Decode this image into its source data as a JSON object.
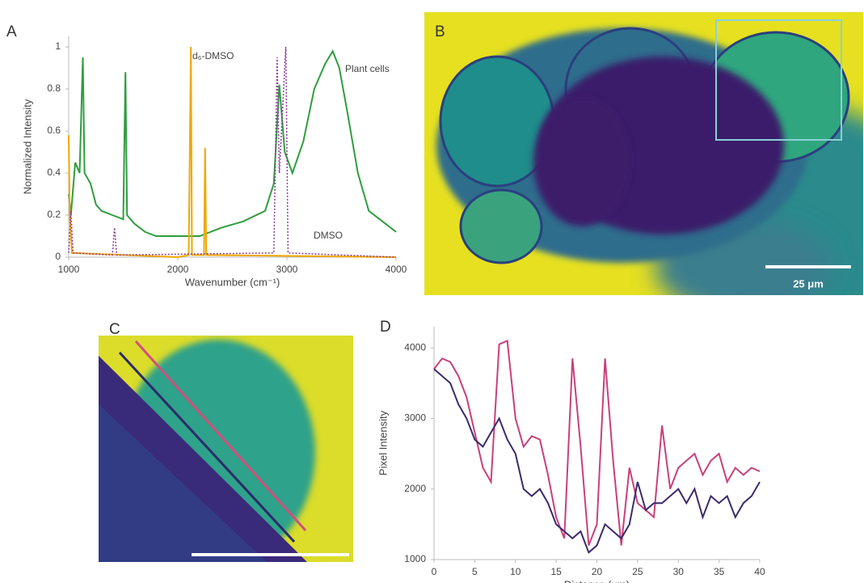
{
  "panel_labels": [
    "A",
    "B",
    "C",
    "D"
  ],
  "scale_bar": "25 μm",
  "chart_data": [
    {
      "type": "line",
      "xlabel": "Wavenumber (cm⁻¹)",
      "ylabel": "Normalized Intensity",
      "xlim": [
        1000,
        4000
      ],
      "ylim": [
        0,
        1.05
      ],
      "xticks": [
        1000,
        2000,
        3000,
        4000
      ],
      "yticks": [
        0,
        0.2,
        0.4,
        0.6,
        0.8,
        1
      ],
      "annotations": [
        "d₆-DMSO",
        "Plant cells",
        "DMSO"
      ],
      "series": [
        {
          "color": "#2e9e3e",
          "style": "solid",
          "x": [
            1000,
            1020,
            1060,
            1100,
            1130,
            1145,
            1200,
            1250,
            1300,
            1400,
            1500,
            1520,
            1535,
            1600,
            1700,
            1800,
            2000,
            2200,
            2400,
            2600,
            2800,
            2880,
            2930,
            2980,
            3050,
            3150,
            3250,
            3350,
            3420,
            3480,
            3550,
            3650,
            3750,
            3850,
            4000
          ],
          "values": [
            0.3,
            0.2,
            0.45,
            0.4,
            0.95,
            0.4,
            0.35,
            0.25,
            0.22,
            0.2,
            0.18,
            0.88,
            0.2,
            0.16,
            0.12,
            0.1,
            0.1,
            0.1,
            0.14,
            0.17,
            0.22,
            0.35,
            0.82,
            0.5,
            0.4,
            0.55,
            0.8,
            0.92,
            0.98,
            0.9,
            0.7,
            0.4,
            0.22,
            0.18,
            0.12
          ]
        },
        {
          "color": "#f0a800",
          "style": "solid",
          "x": [
            1000,
            1010,
            1030,
            2000,
            2100,
            2120,
            2130,
            2240,
            2250,
            2260,
            4000
          ],
          "values": [
            0.58,
            0.2,
            0.02,
            0,
            0.01,
            1,
            0.01,
            0.01,
            0.52,
            0.01,
            0
          ]
        },
        {
          "color": "#8a3a9a",
          "style": "dotted",
          "x": [
            1000,
            1020,
            1040,
            1400,
            1420,
            1440,
            2880,
            2910,
            2930,
            2990,
            3010,
            4000
          ],
          "values": [
            0.02,
            0.22,
            0.02,
            0.01,
            0.14,
            0.01,
            0.02,
            0.95,
            0.4,
            1,
            0.02,
            0
          ]
        }
      ]
    },
    {
      "type": "line",
      "xlabel": "Distance (μm)",
      "ylabel": "Pixel Intensity",
      "xlim": [
        0,
        40
      ],
      "ylim": [
        1000,
        4300
      ],
      "xticks": [
        0,
        5,
        10,
        15,
        20,
        25,
        30,
        35,
        40
      ],
      "yticks": [
        1000,
        2000,
        3000,
        4000
      ],
      "series": [
        {
          "color": "#c8407a",
          "style": "solid",
          "x": [
            0,
            1,
            2,
            3,
            4,
            5,
            6,
            7,
            8,
            9,
            10,
            11,
            12,
            13,
            14,
            15,
            16,
            17,
            18,
            19,
            20,
            21,
            22,
            23,
            24,
            25,
            26,
            27,
            28,
            29,
            30,
            31,
            32,
            33,
            34,
            35,
            36,
            37,
            38,
            39,
            40
          ],
          "values": [
            3700,
            3850,
            3800,
            3600,
            3300,
            2800,
            2300,
            2100,
            4050,
            4100,
            3000,
            2600,
            2750,
            2700,
            2200,
            1600,
            1300,
            3850,
            2600,
            1200,
            1500,
            3850,
            2400,
            1200,
            2300,
            1800,
            1700,
            1600,
            2900,
            2000,
            2300,
            2400,
            2500,
            2200,
            2400,
            2500,
            2100,
            2300,
            2200,
            2300,
            2250
          ]
        },
        {
          "color": "#3b2a6e",
          "style": "solid",
          "x": [
            0,
            1,
            2,
            3,
            4,
            5,
            6,
            7,
            8,
            9,
            10,
            11,
            12,
            13,
            14,
            15,
            16,
            17,
            18,
            19,
            20,
            21,
            22,
            23,
            24,
            25,
            26,
            27,
            28,
            29,
            30,
            31,
            32,
            33,
            34,
            35,
            36,
            37,
            38,
            39,
            40
          ],
          "values": [
            3700,
            3600,
            3500,
            3200,
            3000,
            2700,
            2600,
            2800,
            3000,
            2700,
            2500,
            2000,
            1900,
            2000,
            1800,
            1500,
            1400,
            1300,
            1400,
            1100,
            1200,
            1500,
            1400,
            1300,
            1500,
            2100,
            1700,
            1800,
            1800,
            1900,
            2000,
            1800,
            2000,
            1600,
            1900,
            1800,
            1900,
            1600,
            1800,
            1900,
            2100
          ]
        }
      ]
    }
  ]
}
